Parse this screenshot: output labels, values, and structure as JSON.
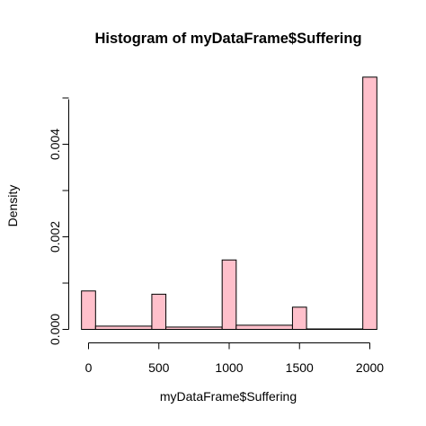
{
  "chart_data": {
    "type": "bar",
    "title": "Histogram of myDataFrame$Suffering",
    "xlabel": "myDataFrame$Suffering",
    "ylabel": "Density",
    "bar_color": "#ffc0cb",
    "border_color": "#000000",
    "x_ticks": [
      "0",
      "500",
      "1000",
      "1500",
      "2000"
    ],
    "x_tick_values": [
      0,
      500,
      1000,
      1500,
      2000
    ],
    "y_ticks": [
      "0.000",
      "0.002",
      "0.004"
    ],
    "y_tick_values": [
      0.0,
      0.002,
      0.004
    ],
    "xlim": [
      -100,
      2100
    ],
    "ylim": [
      0,
      0.0055
    ],
    "grid": false,
    "bins": [
      {
        "x0": -50,
        "x1": 50,
        "density": 0.00083
      },
      {
        "x0": 50,
        "x1": 450,
        "density": 7e-05
      },
      {
        "x0": 450,
        "x1": 550,
        "density": 0.00076
      },
      {
        "x0": 550,
        "x1": 950,
        "density": 5e-05
      },
      {
        "x0": 950,
        "x1": 1050,
        "density": 0.0015
      },
      {
        "x0": 1050,
        "x1": 1450,
        "density": 9e-05
      },
      {
        "x0": 1450,
        "x1": 1550,
        "density": 0.00048
      },
      {
        "x0": 1550,
        "x1": 1950,
        "density": 1e-05
      },
      {
        "x0": 1950,
        "x1": 2050,
        "density": 0.00545
      }
    ]
  }
}
